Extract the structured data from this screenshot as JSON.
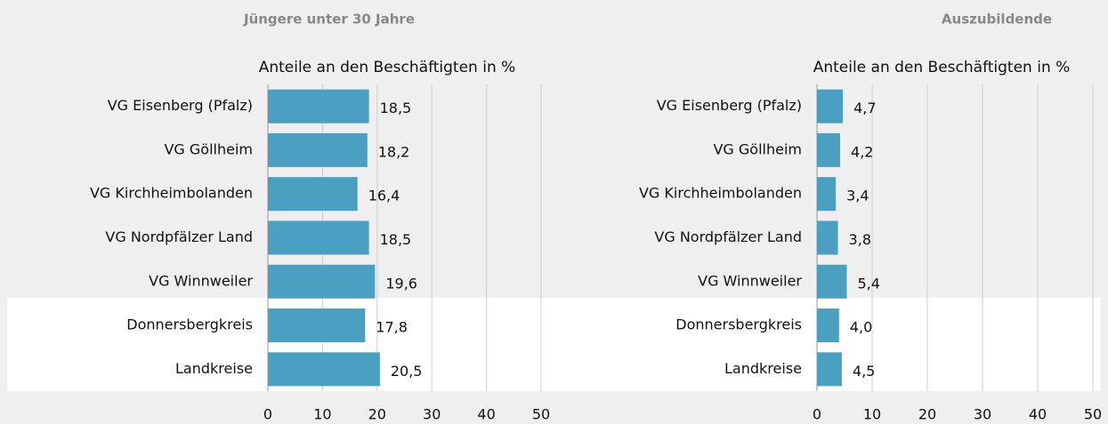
{
  "chart_data": [
    {
      "type": "bar",
      "title": "Jüngere unter 30 Jahre",
      "subtitle": "Anteile an den Beschäftigten in %",
      "categories": [
        "VG Eisenberg (Pfalz)",
        "VG Göllheim",
        "VG Kirchheimbolanden",
        "VG Nordpfälzer Land",
        "VG Winnweiler",
        "Donnersbergkreis",
        "Landkreise"
      ],
      "values": [
        18.5,
        18.2,
        16.4,
        18.5,
        19.6,
        17.8,
        20.5
      ],
      "value_labels": [
        "18,5",
        "18,2",
        "16,4",
        "18,5",
        "19,6",
        "17,8",
        "20,5"
      ],
      "color": "#4b9fc1",
      "xlim": [
        0,
        50
      ],
      "xticks": [
        0,
        10,
        20,
        30,
        40,
        50
      ],
      "grid": true
    },
    {
      "type": "bar",
      "title": "Auszubildende",
      "subtitle": "Anteile an den Beschäftigten in %",
      "categories": [
        "VG Eisenberg (Pfalz)",
        "VG Göllheim",
        "VG Kirchheimbolanden",
        "VG Nordpfälzer Land",
        "VG Winnweiler",
        "Donnersbergkreis",
        "Landkreise"
      ],
      "values": [
        4.7,
        4.2,
        3.4,
        3.8,
        5.4,
        4.0,
        4.5
      ],
      "value_labels": [
        "4,7",
        "4,2",
        "3,4",
        "3,8",
        "5,4",
        "4,0",
        "4,5"
      ],
      "color": "#4b9fc1",
      "xlim": [
        0,
        50
      ],
      "xticks": [
        0,
        10,
        20,
        30,
        40,
        50
      ],
      "grid": true
    }
  ]
}
